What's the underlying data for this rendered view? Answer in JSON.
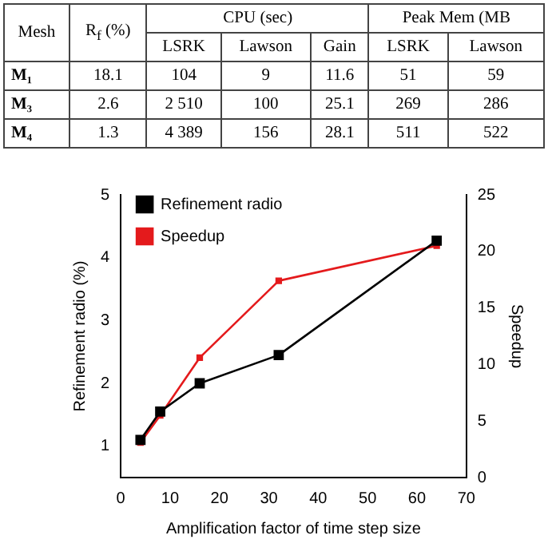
{
  "chart_data": [
    {
      "type": "other",
      "annotations": [
        "Mesh",
        "R$_{f}$ (%)",
        "CPU (sec)",
        "Peak Mem (MB",
        "LSRK",
        "Lawson",
        "Gain",
        "LSRK",
        "Lawson",
        "M₁",
        "18.1",
        "104",
        "9",
        "11.6",
        "51",
        "59",
        "M₃",
        "2.6",
        "2 510",
        "100",
        "25.1",
        "269",
        "286",
        "M₄",
        "1.3",
        "4 389",
        "156",
        "28.1",
        "511",
        "522"
      ]
    },
    {
      "type": "line",
      "xlabel": "Amplification factor of time step size",
      "ylabel": "Refinement radio (%)",
      "y2label": "Speedup",
      "x": [
        4,
        8,
        16,
        32,
        64
      ],
      "series": [
        {
          "name": "Refinement radio",
          "color": "#000000",
          "values": [
            1.1,
            1.55,
            2.0,
            2.45,
            4.27
          ]
        },
        {
          "name": "Speedup",
          "color": "#e41a1c",
          "values": [
            3.1,
            5.5,
            10.6,
            17.4,
            20.5
          ],
          "axis": "y2"
        }
      ],
      "xlim": [
        0,
        70
      ],
      "xticks": [
        0,
        10,
        20,
        30,
        40,
        50,
        60,
        70
      ],
      "ylim": [
        0.5,
        5
      ],
      "yticks": [
        1,
        2,
        3,
        4,
        5
      ],
      "y2lim": [
        0,
        25
      ],
      "y2ticks": [
        0,
        5,
        10,
        15,
        20,
        25
      ],
      "legend": "top left",
      "marker": "square",
      "grid": false
    }
  ]
}
